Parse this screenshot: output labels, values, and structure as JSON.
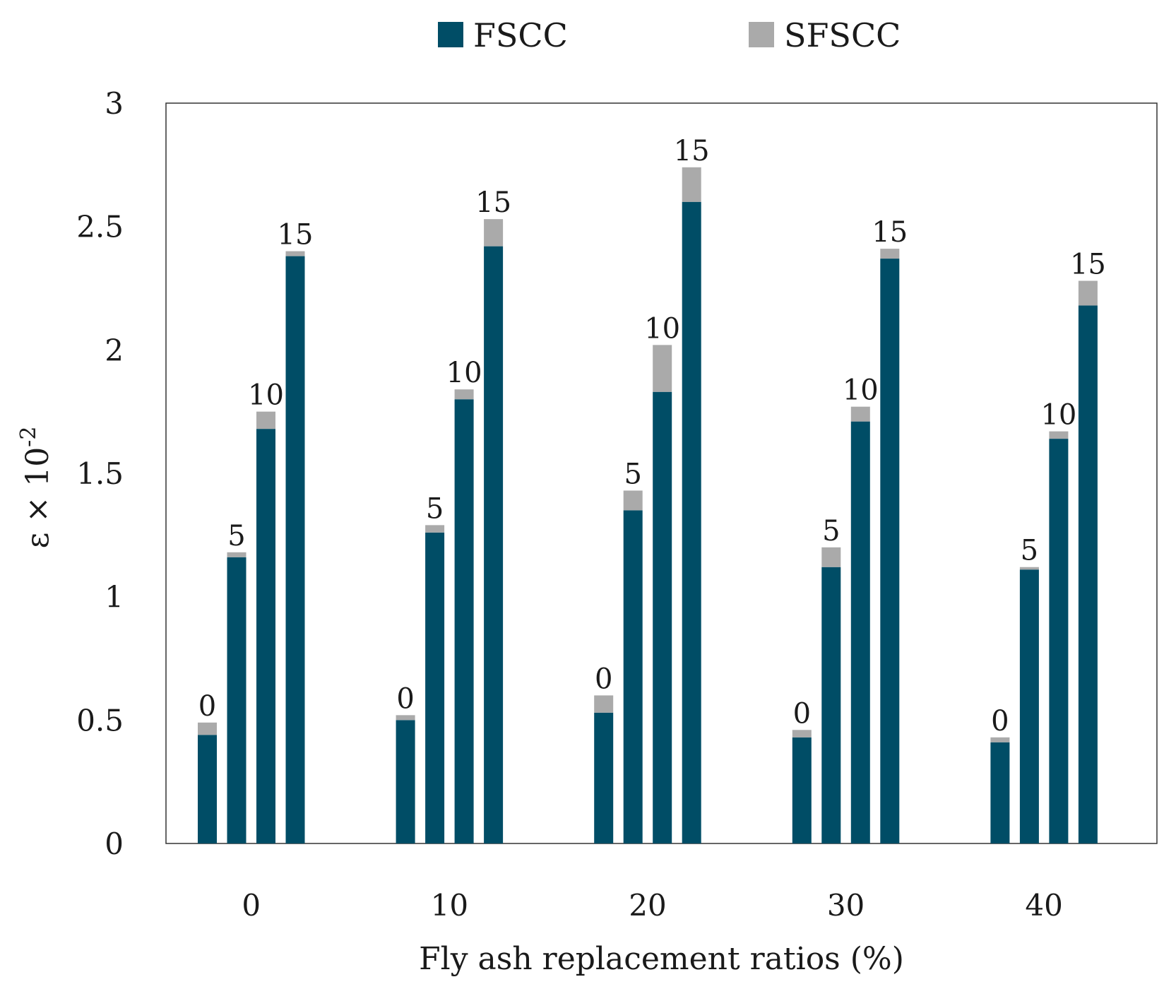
{
  "chart_data": {
    "type": "bar",
    "stacked": true,
    "title": "",
    "xlabel": "Fly ash replacement ratios (%)",
    "ylabel_main": "ε × 10",
    "ylabel_exp": "-2",
    "ylim": [
      0,
      3
    ],
    "yticks": [
      "0",
      "0.5",
      "1",
      "1.5",
      "2",
      "2.5",
      "3"
    ],
    "grid": false,
    "legend_position": "top-center",
    "categories": [
      "0",
      "10",
      "20",
      "30",
      "40"
    ],
    "sub_categories": [
      "0",
      "5",
      "10",
      "15"
    ],
    "series": [
      {
        "name": "FSCC",
        "color": "#004d66",
        "values": [
          [
            0.44,
            1.16,
            1.68,
            2.38
          ],
          [
            0.5,
            1.26,
            1.8,
            2.42
          ],
          [
            0.53,
            1.35,
            1.83,
            2.6
          ],
          [
            0.43,
            1.12,
            1.71,
            2.37
          ],
          [
            0.41,
            1.11,
            1.64,
            2.18
          ]
        ]
      },
      {
        "name": "SFSCC",
        "color": "#aaaaaa",
        "values": [
          [
            0.05,
            0.02,
            0.07,
            0.02
          ],
          [
            0.02,
            0.03,
            0.04,
            0.11
          ],
          [
            0.07,
            0.08,
            0.19,
            0.14
          ],
          [
            0.03,
            0.08,
            0.06,
            0.04
          ],
          [
            0.02,
            0.01,
            0.03,
            0.1
          ]
        ]
      }
    ]
  }
}
